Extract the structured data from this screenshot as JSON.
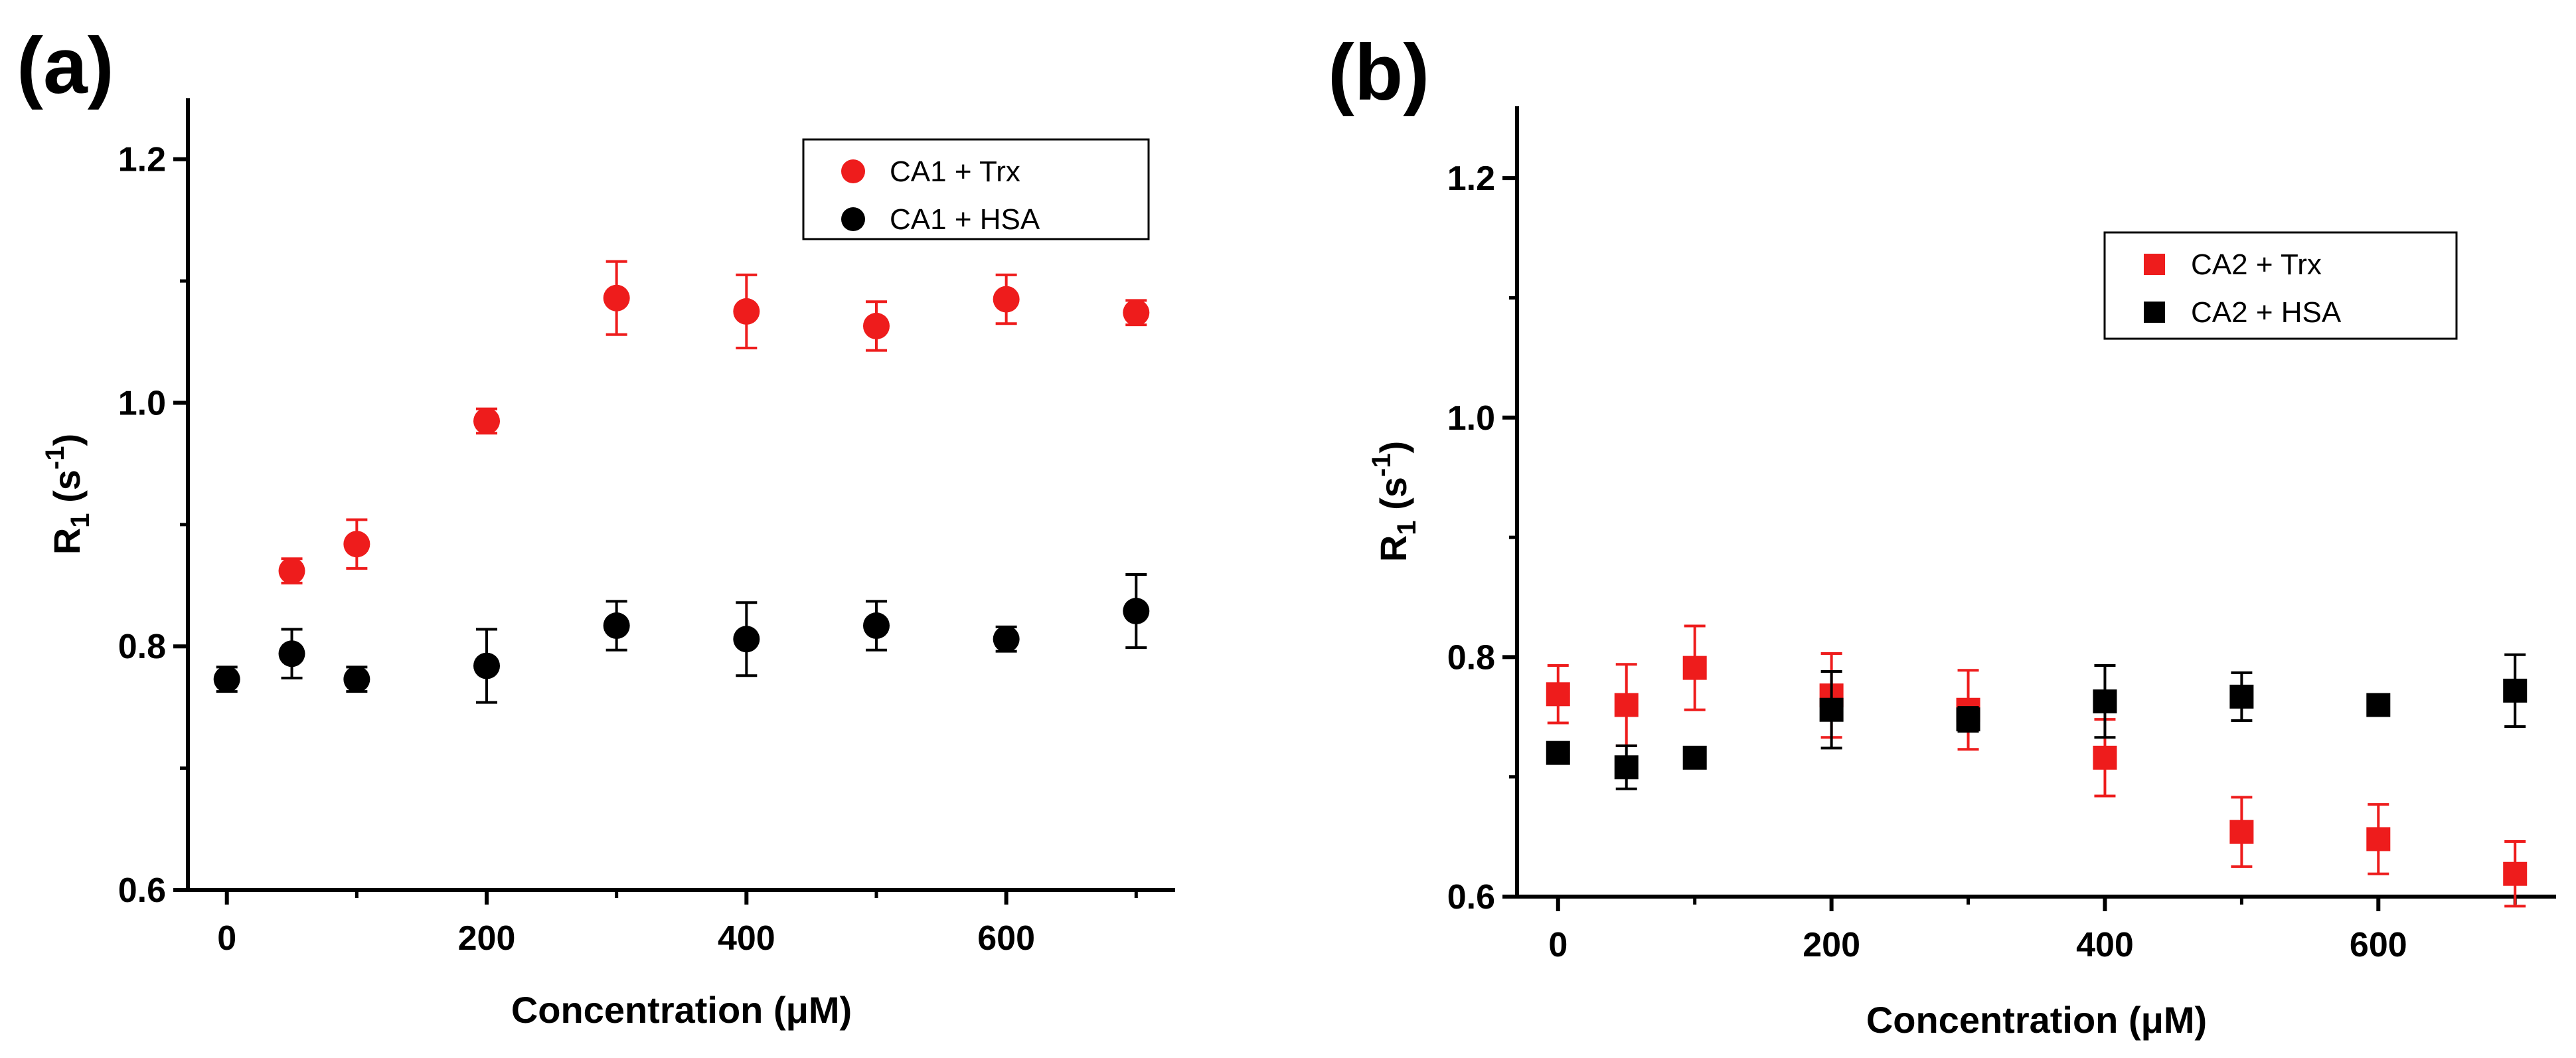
{
  "chart_data": [
    {
      "panel": "(a)",
      "type": "scatter",
      "xlabel": "Concentration (μM)",
      "ylabel": {
        "main": "R",
        "sub": "1",
        "unit_open": " (s",
        "unit_sup": "-1",
        "unit_close": ")"
      },
      "xlim": [
        -30,
        730
      ],
      "ylim": [
        0.6,
        1.25
      ],
      "xticks": [
        0,
        200,
        400,
        600
      ],
      "xtick_labels": [
        "0",
        "200",
        "400",
        "600"
      ],
      "yticks": [
        0.6,
        0.8,
        1.0,
        1.2
      ],
      "ytick_labels": [
        "0.6",
        "0.8",
        "1.0",
        "1.2"
      ],
      "marker": "circle",
      "legend_position": "top-right",
      "series": [
        {
          "name": "CA1 + Trx",
          "color": "#ee1c1c",
          "x": [
            50,
            100,
            200,
            300,
            400,
            500,
            600,
            700
          ],
          "y": [
            0.862,
            0.884,
            0.985,
            1.086,
            1.075,
            1.063,
            1.085,
            1.074
          ],
          "err": [
            0.01,
            0.02,
            0.01,
            0.03,
            0.03,
            0.02,
            0.02,
            0.01
          ]
        },
        {
          "name": "CA1 + HSA",
          "color": "#000000",
          "x": [
            0,
            50,
            100,
            200,
            300,
            400,
            500,
            600,
            700
          ],
          "y": [
            0.773,
            0.794,
            0.773,
            0.784,
            0.817,
            0.806,
            0.817,
            0.806,
            0.829
          ],
          "err": [
            0.01,
            0.02,
            0.01,
            0.03,
            0.02,
            0.03,
            0.02,
            0.01,
            0.03
          ]
        }
      ]
    },
    {
      "panel": "(b)",
      "type": "scatter",
      "xlabel": "Concentration (μM)",
      "ylabel": {
        "main": "R",
        "sub": "1",
        "unit_open": " (s",
        "unit_sup": "-1",
        "unit_close": ")"
      },
      "xlim": [
        -30,
        730
      ],
      "ylim": [
        0.6,
        1.26
      ],
      "xticks": [
        0,
        200,
        400,
        600
      ],
      "xtick_labels": [
        "0",
        "200",
        "400",
        "600"
      ],
      "yticks": [
        0.6,
        0.8,
        1.0,
        1.2
      ],
      "ytick_labels": [
        "0.6",
        "0.8",
        "1.0",
        "1.2"
      ],
      "marker": "square",
      "legend_position": "upper-right",
      "series": [
        {
          "name": "CA2 + Trx",
          "color": "#ee1c1c",
          "x": [
            0,
            50,
            100,
            200,
            300,
            400,
            500,
            600,
            700
          ],
          "y": [
            0.769,
            0.76,
            0.791,
            0.768,
            0.756,
            0.716,
            0.654,
            0.648,
            0.619
          ],
          "err": [
            0.024,
            0.034,
            0.035,
            0.035,
            0.033,
            0.032,
            0.029,
            0.029,
            0.027
          ]
        },
        {
          "name": "CA2 + HSA",
          "color": "#000000",
          "x": [
            0,
            50,
            100,
            200,
            300,
            400,
            500,
            600,
            700
          ],
          "y": [
            0.72,
            0.708,
            0.716,
            0.756,
            0.748,
            0.763,
            0.767,
            0.76,
            0.772
          ],
          "err": [
            0.006,
            0.018,
            0.006,
            0.032,
            0.01,
            0.03,
            0.02,
            0.008,
            0.03
          ]
        }
      ]
    }
  ]
}
